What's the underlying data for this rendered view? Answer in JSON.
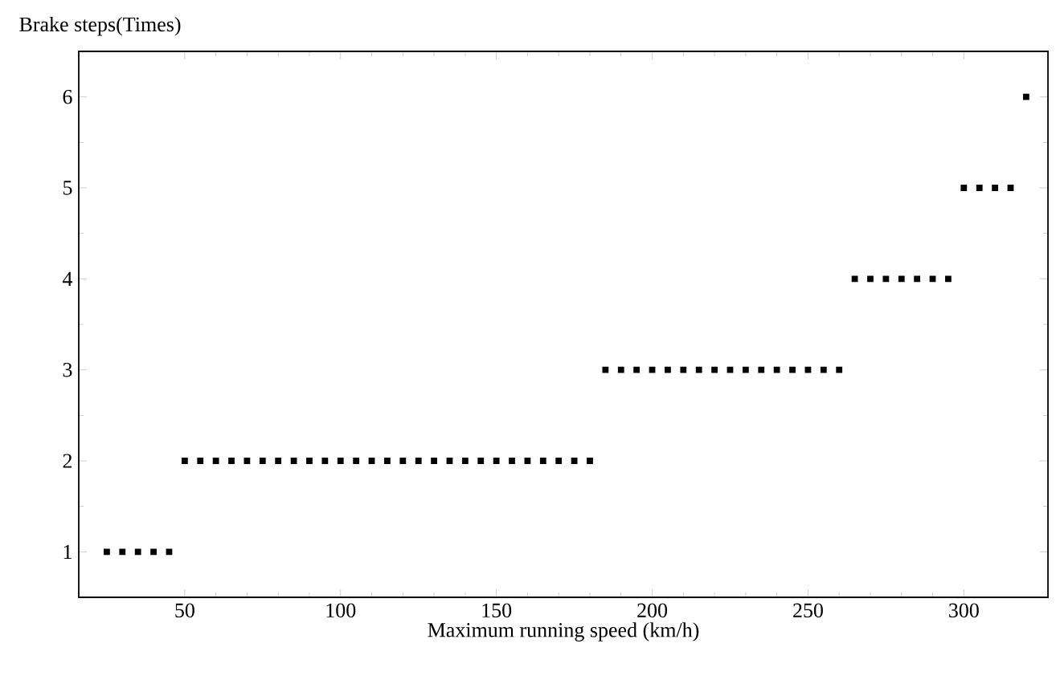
{
  "chart_data": {
    "type": "scatter",
    "xlabel": "Maximum running speed (km/h)",
    "ylabel": "Brake steps(Times)",
    "xlim": [
      16,
      327
    ],
    "ylim": [
      0.5,
      6.5
    ],
    "xticks": [
      50,
      100,
      150,
      200,
      250,
      300
    ],
    "yticks": [
      1,
      2,
      3,
      4,
      5,
      6
    ],
    "marker": "square",
    "series": [
      {
        "color": "#000000",
        "x": [
          25,
          30,
          35,
          40,
          45,
          50,
          55,
          60,
          65,
          70,
          75,
          80,
          85,
          90,
          95,
          100,
          105,
          110,
          115,
          120,
          125,
          130,
          135,
          140,
          145,
          150,
          155,
          160,
          165,
          170,
          175,
          180,
          185,
          190,
          195,
          200,
          205,
          210,
          215,
          220,
          225,
          230,
          235,
          240,
          245,
          250,
          255,
          260,
          265,
          270,
          275,
          280,
          285,
          290,
          295,
          300,
          305,
          310,
          315,
          320
        ],
        "values": [
          1,
          1,
          1,
          1,
          1,
          2,
          2,
          2,
          2,
          2,
          2,
          2,
          2,
          2,
          2,
          2,
          2,
          2,
          2,
          2,
          2,
          2,
          2,
          2,
          2,
          2,
          2,
          2,
          2,
          2,
          2,
          2,
          3,
          3,
          3,
          3,
          3,
          3,
          3,
          3,
          3,
          3,
          3,
          3,
          3,
          3,
          3,
          3,
          4,
          4,
          4,
          4,
          4,
          4,
          4,
          5,
          5,
          5,
          5,
          6
        ]
      }
    ]
  }
}
